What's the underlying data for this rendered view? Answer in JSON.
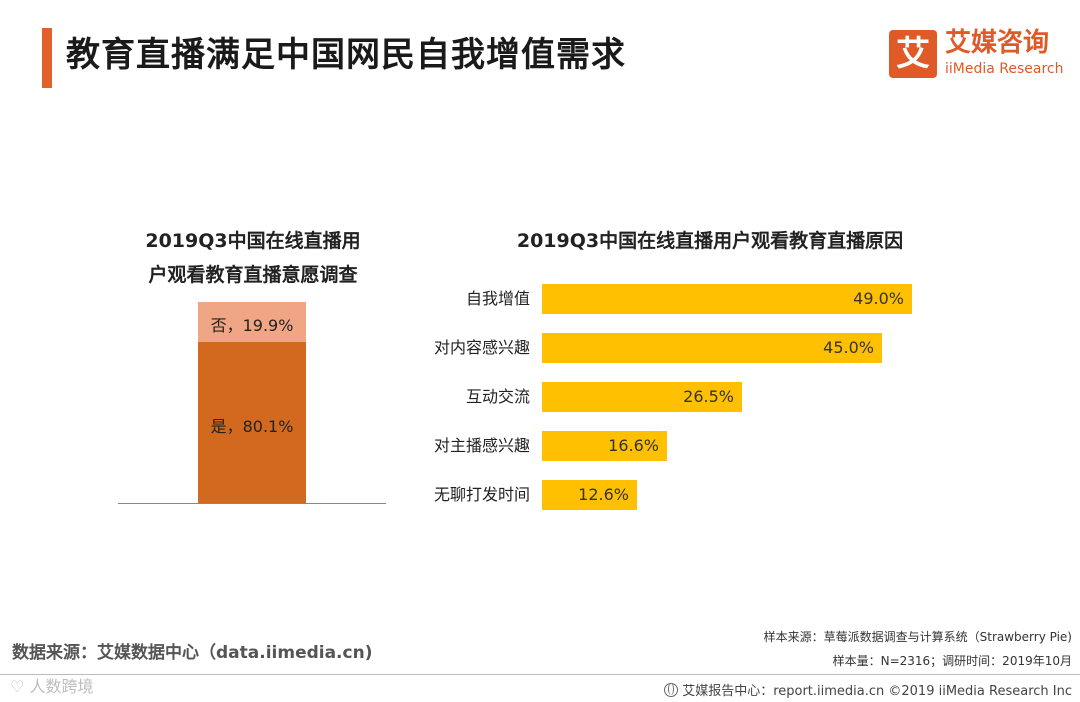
{
  "header": {
    "title": "教育直播满足中国网民自我增值需求",
    "accent_color": "#e0622a",
    "logo": {
      "mark": "艾",
      "name_cn": "艾媒咨询",
      "name_en": "iiMedia Research",
      "color": "#e05a28"
    }
  },
  "chart_data": [
    {
      "type": "bar",
      "orientation": "vertical-stacked",
      "title": "2019Q3中国在线直播用户观看教育直播意愿调查",
      "title_lines": [
        "2019Q3中国在线直播用",
        "户观看教育直播意愿调查"
      ],
      "categories": [
        ""
      ],
      "series": [
        {
          "name": "是",
          "values": [
            80.1
          ],
          "label": "是，80.1%",
          "color": "#d2691f"
        },
        {
          "name": "否",
          "values": [
            19.9
          ],
          "label": "否，19.9%",
          "color": "#f0a584"
        }
      ],
      "ylim": [
        0,
        100
      ],
      "grid": false
    },
    {
      "type": "bar",
      "orientation": "horizontal",
      "title": "2019Q3中国在线直播用户观看教育直播原因",
      "categories": [
        "自我增值",
        "对内容感兴趣",
        "互动交流",
        "对主播感兴趣",
        "无聊打发时间"
      ],
      "values": [
        49.0,
        45.0,
        26.5,
        16.6,
        12.6
      ],
      "value_labels": [
        "49.0%",
        "45.0%",
        "26.5%",
        "16.6%",
        "12.6%"
      ],
      "xlim": [
        0,
        49.0
      ],
      "color": "#fec000",
      "grid": false
    }
  ],
  "footer": {
    "source": "数据来源：艾媒数据中心（data.iimedia.cn)",
    "sample_source": "样本来源：草莓派数据调查与计算系统（Strawberry Pie)",
    "sample_size": "样本量：N=2316；调研时间：2019年10月",
    "watermark": "人数跨境",
    "report_center": "艾媒报告中心：report.iimedia.cn  ©2019  iiMedia Research  Inc"
  }
}
